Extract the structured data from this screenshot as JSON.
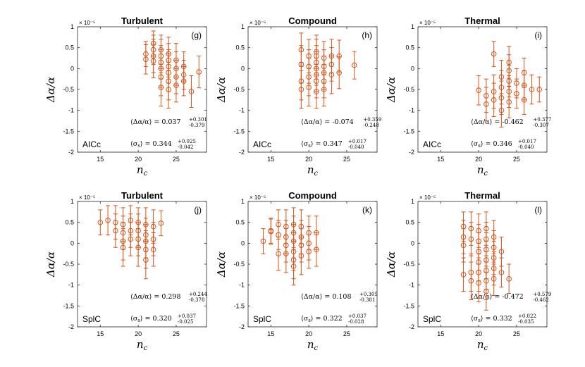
{
  "chart_data": [
    {
      "id": "g",
      "type": "scatter",
      "title": "Turbulent",
      "tag": "(g)",
      "method": "AICc",
      "xlabel": "n_c",
      "ylabel": "Δα/α",
      "xlim": [
        12,
        29
      ],
      "ylim": [
        -2,
        1
      ],
      "xticks": [
        15,
        20,
        25
      ],
      "yticks": [
        1,
        0.5,
        0,
        -0.5,
        -1,
        -1.5,
        -2
      ],
      "exponent": "× 10⁻⁵",
      "mean_label": "0.037",
      "mean_plus": "+0.301",
      "mean_minus": "-0.379",
      "sigma_label": "0.344",
      "sigma_plus": "+0.025",
      "sigma_minus": "-0.042",
      "points": [
        {
          "x": 21,
          "y": 0.35,
          "err": 0.3
        },
        {
          "x": 21,
          "y": 0.22,
          "err": 0.35
        },
        {
          "x": 22,
          "y": 0.6,
          "err": 0.3
        },
        {
          "x": 22,
          "y": 0.45,
          "err": 0.35
        },
        {
          "x": 22,
          "y": 0.3,
          "err": 0.4
        },
        {
          "x": 22,
          "y": 0.18,
          "err": 0.4
        },
        {
          "x": 23,
          "y": 0.45,
          "err": 0.35
        },
        {
          "x": 23,
          "y": 0.3,
          "err": 0.4
        },
        {
          "x": 23,
          "y": 0.15,
          "err": 0.4
        },
        {
          "x": 23,
          "y": 0.0,
          "err": 0.45
        },
        {
          "x": 23,
          "y": -0.2,
          "err": 0.45
        },
        {
          "x": 23,
          "y": -0.45,
          "err": 0.45
        },
        {
          "x": 24,
          "y": 0.35,
          "err": 0.4
        },
        {
          "x": 24,
          "y": 0.2,
          "err": 0.4
        },
        {
          "x": 24,
          "y": 0.05,
          "err": 0.4
        },
        {
          "x": 24,
          "y": -0.1,
          "err": 0.45
        },
        {
          "x": 24,
          "y": -0.3,
          "err": 0.45
        },
        {
          "x": 24,
          "y": -0.5,
          "err": 0.45
        },
        {
          "x": 25,
          "y": 0.2,
          "err": 0.4
        },
        {
          "x": 25,
          "y": 0.0,
          "err": 0.4
        },
        {
          "x": 25,
          "y": -0.2,
          "err": 0.4
        },
        {
          "x": 25,
          "y": -0.4,
          "err": 0.4
        },
        {
          "x": 26,
          "y": 0.05,
          "err": 0.35
        },
        {
          "x": 26,
          "y": -0.15,
          "err": 0.35
        },
        {
          "x": 26,
          "y": -0.3,
          "err": 0.35
        },
        {
          "x": 27,
          "y": -0.55,
          "err": 0.38
        },
        {
          "x": 28,
          "y": -0.08,
          "err": 0.38
        }
      ]
    },
    {
      "id": "h",
      "type": "scatter",
      "title": "Compound",
      "tag": "(h)",
      "method": "AICc",
      "xlabel": "n_c",
      "ylabel": "Δα/α",
      "xlim": [
        12,
        29
      ],
      "ylim": [
        -2,
        1
      ],
      "xticks": [
        15,
        20,
        25
      ],
      "yticks": [
        1,
        0.5,
        0,
        -0.5,
        -1,
        -1.5,
        -2
      ],
      "exponent": "× 10⁻⁵",
      "mean_label": "-0.074",
      "mean_plus": "+0.359",
      "mean_minus": "-0.248",
      "sigma_label": "0.347",
      "sigma_plus": "+0.017",
      "sigma_minus": "-0.040",
      "points": [
        {
          "x": 19,
          "y": 0.45,
          "err": 0.4
        },
        {
          "x": 19,
          "y": 0.1,
          "err": 0.45
        },
        {
          "x": 19,
          "y": -0.3,
          "err": 0.45
        },
        {
          "x": 19,
          "y": -0.5,
          "err": 0.45
        },
        {
          "x": 20,
          "y": 0.3,
          "err": 0.4
        },
        {
          "x": 20,
          "y": 0.05,
          "err": 0.4
        },
        {
          "x": 20,
          "y": -0.2,
          "err": 0.45
        },
        {
          "x": 20,
          "y": -0.45,
          "err": 0.45
        },
        {
          "x": 21,
          "y": 0.4,
          "err": 0.4
        },
        {
          "x": 21,
          "y": 0.3,
          "err": 0.4
        },
        {
          "x": 21,
          "y": 0.15,
          "err": 0.4
        },
        {
          "x": 21,
          "y": 0.0,
          "err": 0.4
        },
        {
          "x": 21,
          "y": -0.15,
          "err": 0.4
        },
        {
          "x": 21,
          "y": -0.3,
          "err": 0.4
        },
        {
          "x": 21,
          "y": -0.55,
          "err": 0.4
        },
        {
          "x": 22,
          "y": 0.25,
          "err": 0.4
        },
        {
          "x": 22,
          "y": 0.05,
          "err": 0.4
        },
        {
          "x": 22,
          "y": -0.1,
          "err": 0.4
        },
        {
          "x": 22,
          "y": -0.3,
          "err": 0.4
        },
        {
          "x": 22,
          "y": -0.5,
          "err": 0.4
        },
        {
          "x": 23,
          "y": 0.3,
          "err": 0.4
        },
        {
          "x": 23,
          "y": 0.1,
          "err": 0.4
        },
        {
          "x": 23,
          "y": -0.15,
          "err": 0.45
        },
        {
          "x": 24,
          "y": 0.3,
          "err": 0.38
        },
        {
          "x": 24,
          "y": -0.1,
          "err": 0.38
        },
        {
          "x": 26,
          "y": 0.08,
          "err": 0.33
        }
      ]
    },
    {
      "id": "i",
      "type": "scatter",
      "title": "Thermal",
      "tag": "(i)",
      "method": "AICc",
      "xlabel": "n_c",
      "ylabel": "Δα/α",
      "xlim": [
        12,
        29
      ],
      "ylim": [
        -2,
        1
      ],
      "xticks": [
        15,
        20,
        25
      ],
      "yticks": [
        1,
        0.5,
        0,
        -0.5,
        -1,
        -1.5,
        -2
      ],
      "exponent": "× 10⁻⁵",
      "mean_label": "-0.462",
      "mean_plus": "+0.377",
      "mean_minus": "-0.307",
      "sigma_label": "0.346",
      "sigma_plus": "+0.017",
      "sigma_minus": "-0.040",
      "points": [
        {
          "x": 20,
          "y": -0.52,
          "err": 0.35
        },
        {
          "x": 21,
          "y": -0.65,
          "err": 0.4
        },
        {
          "x": 21,
          "y": -0.85,
          "err": 0.4
        },
        {
          "x": 22,
          "y": 0.35,
          "err": 0.3
        },
        {
          "x": 22,
          "y": -0.55,
          "err": 0.4
        },
        {
          "x": 22,
          "y": -0.75,
          "err": 0.4
        },
        {
          "x": 23,
          "y": -0.2,
          "err": 0.4
        },
        {
          "x": 23,
          "y": -0.45,
          "err": 0.4
        },
        {
          "x": 23,
          "y": -0.7,
          "err": 0.4
        },
        {
          "x": 23,
          "y": -1.0,
          "err": 0.4
        },
        {
          "x": 24,
          "y": 0.15,
          "err": 0.38
        },
        {
          "x": 24,
          "y": -0.05,
          "err": 0.38
        },
        {
          "x": 24,
          "y": -0.3,
          "err": 0.38
        },
        {
          "x": 24,
          "y": -0.55,
          "err": 0.38
        },
        {
          "x": 24,
          "y": -0.8,
          "err": 0.38
        },
        {
          "x": 25,
          "y": -0.35,
          "err": 0.35
        },
        {
          "x": 25,
          "y": -0.6,
          "err": 0.35
        },
        {
          "x": 26,
          "y": -0.1,
          "err": 0.35
        },
        {
          "x": 26,
          "y": -0.4,
          "err": 0.35
        },
        {
          "x": 26,
          "y": -0.75,
          "err": 0.35
        },
        {
          "x": 27,
          "y": -0.5,
          "err": 0.35
        },
        {
          "x": 28,
          "y": -0.5,
          "err": 0.3
        }
      ]
    },
    {
      "id": "j",
      "type": "scatter",
      "title": "Turbulent",
      "tag": "(j)",
      "method": "SplC",
      "xlabel": "n_c",
      "ylabel": "Δα/α",
      "xlim": [
        12,
        29
      ],
      "ylim": [
        -2,
        1
      ],
      "xticks": [
        15,
        20,
        25
      ],
      "yticks": [
        1,
        0.5,
        0,
        -0.5,
        -1,
        -1.5,
        -2
      ],
      "exponent": "× 10⁻⁵",
      "mean_label": "0.298",
      "mean_plus": "+0.244",
      "mean_minus": "-0.378",
      "sigma_label": "0.320",
      "sigma_plus": "+0.037",
      "sigma_minus": "-0.025",
      "points": [
        {
          "x": 15,
          "y": 0.5,
          "err": 0.3
        },
        {
          "x": 16,
          "y": 0.55,
          "err": 0.35
        },
        {
          "x": 17,
          "y": 0.5,
          "err": 0.4
        },
        {
          "x": 17,
          "y": 0.3,
          "err": 0.4
        },
        {
          "x": 18,
          "y": 0.45,
          "err": 0.4
        },
        {
          "x": 18,
          "y": 0.25,
          "err": 0.4
        },
        {
          "x": 18,
          "y": 0.05,
          "err": 0.45
        },
        {
          "x": 18,
          "y": -0.1,
          "err": 0.45
        },
        {
          "x": 19,
          "y": 0.55,
          "err": 0.35
        },
        {
          "x": 19,
          "y": 0.3,
          "err": 0.4
        },
        {
          "x": 19,
          "y": 0.1,
          "err": 0.4
        },
        {
          "x": 20,
          "y": 0.5,
          "err": 0.35
        },
        {
          "x": 20,
          "y": 0.3,
          "err": 0.4
        },
        {
          "x": 20,
          "y": 0.1,
          "err": 0.4
        },
        {
          "x": 20,
          "y": -0.1,
          "err": 0.45
        },
        {
          "x": 21,
          "y": 0.45,
          "err": 0.4
        },
        {
          "x": 21,
          "y": 0.2,
          "err": 0.4
        },
        {
          "x": 21,
          "y": 0.05,
          "err": 0.4
        },
        {
          "x": 21,
          "y": -0.15,
          "err": 0.45
        },
        {
          "x": 21,
          "y": -0.4,
          "err": 0.45
        },
        {
          "x": 22,
          "y": 0.4,
          "err": 0.4
        },
        {
          "x": 22,
          "y": 0.1,
          "err": 0.4
        },
        {
          "x": 22,
          "y": -0.15,
          "err": 0.4
        },
        {
          "x": 23,
          "y": 0.48,
          "err": 0.3
        }
      ]
    },
    {
      "id": "k",
      "type": "scatter",
      "title": "Compound",
      "tag": "(k)",
      "method": "SplC",
      "xlabel": "n_c",
      "ylabel": "Δα/α",
      "xlim": [
        12,
        29
      ],
      "ylim": [
        -2,
        1
      ],
      "xticks": [
        15,
        20,
        25
      ],
      "yticks": [
        1,
        0.5,
        0,
        -0.5,
        -1,
        -1.5,
        -2
      ],
      "exponent": "× 10⁻⁵",
      "mean_label": "0.108",
      "mean_plus": "+0.305",
      "mean_minus": "-0.381",
      "sigma_label": "0.322",
      "sigma_plus": "+0.037",
      "sigma_minus": "-0.028",
      "points": [
        {
          "x": 14,
          "y": 0.05,
          "err": 0.3
        },
        {
          "x": 15,
          "y": 0.3,
          "err": 0.3
        },
        {
          "x": 15,
          "y": 0.28,
          "err": 0.3
        },
        {
          "x": 16,
          "y": 0.45,
          "err": 0.35
        },
        {
          "x": 16,
          "y": 0.2,
          "err": 0.35
        },
        {
          "x": 16,
          "y": -0.25,
          "err": 0.4
        },
        {
          "x": 17,
          "y": 0.4,
          "err": 0.4
        },
        {
          "x": 17,
          "y": 0.15,
          "err": 0.4
        },
        {
          "x": 17,
          "y": -0.05,
          "err": 0.4
        },
        {
          "x": 17,
          "y": -0.25,
          "err": 0.45
        },
        {
          "x": 18,
          "y": 0.45,
          "err": 0.4
        },
        {
          "x": 18,
          "y": 0.25,
          "err": 0.4
        },
        {
          "x": 18,
          "y": 0.05,
          "err": 0.4
        },
        {
          "x": 18,
          "y": -0.2,
          "err": 0.45
        },
        {
          "x": 18,
          "y": -0.4,
          "err": 0.45
        },
        {
          "x": 18,
          "y": -0.55,
          "err": 0.45
        },
        {
          "x": 19,
          "y": 0.4,
          "err": 0.4
        },
        {
          "x": 19,
          "y": 0.15,
          "err": 0.4
        },
        {
          "x": 19,
          "y": -0.05,
          "err": 0.4
        },
        {
          "x": 19,
          "y": -0.3,
          "err": 0.45
        },
        {
          "x": 20,
          "y": 0.25,
          "err": 0.4
        },
        {
          "x": 20,
          "y": 0.0,
          "err": 0.4
        },
        {
          "x": 20,
          "y": -0.2,
          "err": 0.4
        },
        {
          "x": 21,
          "y": 0.25,
          "err": 0.4
        },
        {
          "x": 21,
          "y": -0.15,
          "err": 0.4
        }
      ]
    },
    {
      "id": "l",
      "type": "scatter",
      "title": "Thermal",
      "tag": "(l)",
      "method": "SplC",
      "xlabel": "n_c",
      "ylabel": "Δα/α",
      "xlim": [
        12,
        29
      ],
      "ylim": [
        -2,
        1
      ],
      "xticks": [
        15,
        20,
        25
      ],
      "yticks": [
        1,
        0.5,
        0,
        -0.5,
        -1,
        -1.5,
        -2
      ],
      "exponent": "× 10⁻⁵",
      "mean_label": "-0.472",
      "mean_plus": "+0.579",
      "mean_minus": "-0.462",
      "sigma_label": "0.332",
      "sigma_plus": "+0.022",
      "sigma_minus": "-0.035",
      "points": [
        {
          "x": 18,
          "y": 0.4,
          "err": 0.35
        },
        {
          "x": 18,
          "y": 0.15,
          "err": 0.4
        },
        {
          "x": 18,
          "y": -0.05,
          "err": 0.4
        },
        {
          "x": 18,
          "y": -0.75,
          "err": 0.4
        },
        {
          "x": 19,
          "y": 0.35,
          "err": 0.4
        },
        {
          "x": 19,
          "y": 0.1,
          "err": 0.4
        },
        {
          "x": 19,
          "y": -0.7,
          "err": 0.45
        },
        {
          "x": 19,
          "y": -0.9,
          "err": 0.45
        },
        {
          "x": 20,
          "y": 0.3,
          "err": 0.4
        },
        {
          "x": 20,
          "y": 0.05,
          "err": 0.4
        },
        {
          "x": 20,
          "y": -0.2,
          "err": 0.45
        },
        {
          "x": 20,
          "y": -0.45,
          "err": 0.45
        },
        {
          "x": 20,
          "y": -0.7,
          "err": 0.45
        },
        {
          "x": 20,
          "y": -0.95,
          "err": 0.45
        },
        {
          "x": 21,
          "y": 0.35,
          "err": 0.4
        },
        {
          "x": 21,
          "y": 0.1,
          "err": 0.4
        },
        {
          "x": 21,
          "y": -0.15,
          "err": 0.4
        },
        {
          "x": 21,
          "y": -0.4,
          "err": 0.45
        },
        {
          "x": 21,
          "y": -0.65,
          "err": 0.45
        },
        {
          "x": 21,
          "y": -0.9,
          "err": 0.45
        },
        {
          "x": 21,
          "y": -1.15,
          "err": 0.45
        },
        {
          "x": 22,
          "y": 0.15,
          "err": 0.4
        },
        {
          "x": 22,
          "y": -0.1,
          "err": 0.4
        },
        {
          "x": 22,
          "y": -0.35,
          "err": 0.4
        },
        {
          "x": 22,
          "y": -0.6,
          "err": 0.4
        },
        {
          "x": 22,
          "y": -0.85,
          "err": 0.4
        },
        {
          "x": 23,
          "y": -0.2,
          "err": 0.35
        },
        {
          "x": 23,
          "y": -0.7,
          "err": 0.35
        },
        {
          "x": 24,
          "y": -0.85,
          "err": 0.35
        }
      ]
    }
  ]
}
